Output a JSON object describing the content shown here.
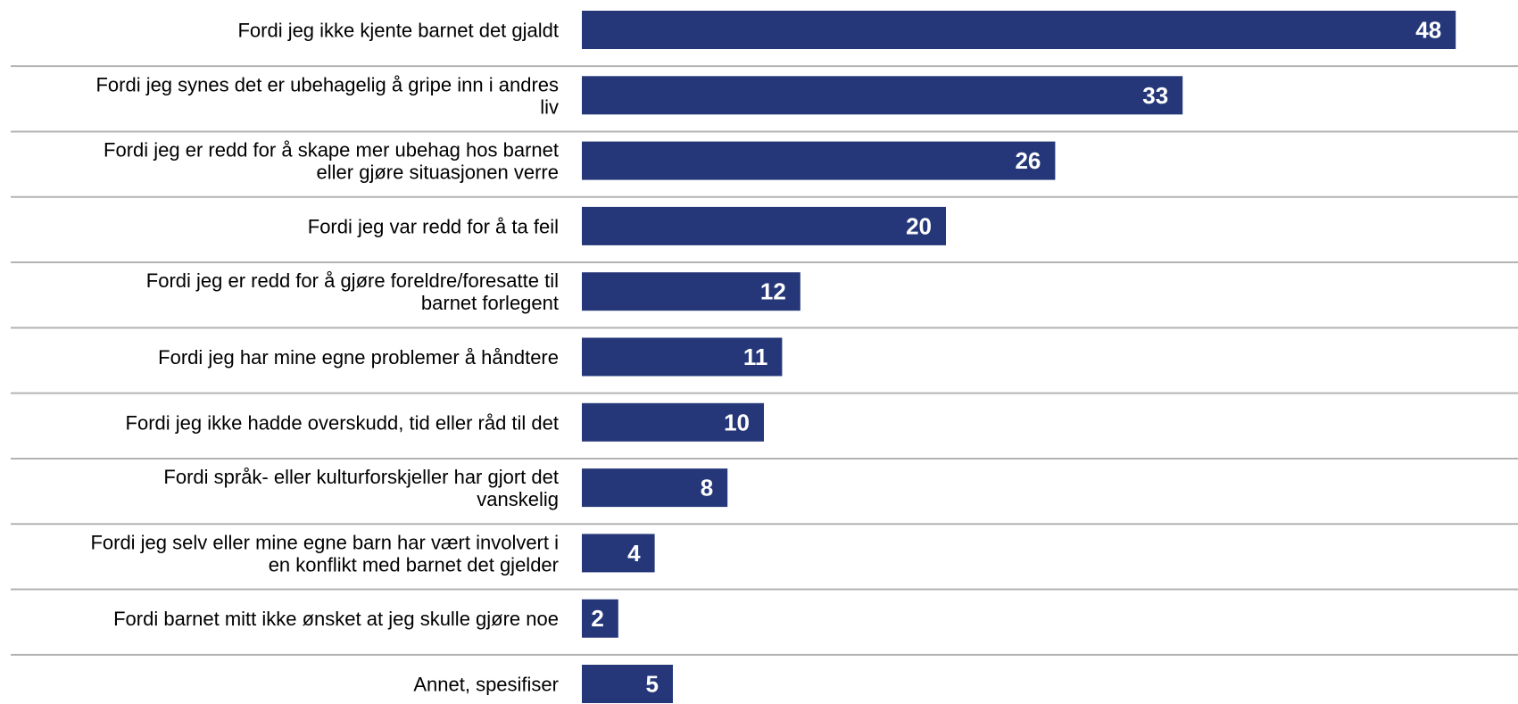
{
  "chart_data": {
    "type": "bar",
    "orientation": "horizontal",
    "categories": [
      "Fordi jeg ikke kjente barnet det gjaldt",
      "Fordi jeg synes det er ubehagelig å gripe inn i andres liv",
      "Fordi jeg er redd for å skape mer ubehag hos barnet eller gjøre situasjonen verre",
      "Fordi jeg var redd for å ta feil",
      "Fordi jeg er redd for å gjøre foreldre/foresatte til barnet forlegent",
      "Fordi jeg har mine egne problemer å håndtere",
      "Fordi jeg ikke hadde overskudd, tid eller råd til det",
      "Fordi språk- eller kulturforskjeller har gjort det vanskelig",
      "Fordi jeg selv eller mine egne barn har vært involvert i en konflikt med barnet det gjelder",
      "Fordi barnet mitt ikke ønsket at jeg skulle gjøre noe",
      "Annet, spesifiser"
    ],
    "category_lines": [
      [
        "Fordi jeg ikke kjente barnet det gjaldt"
      ],
      [
        "Fordi jeg synes det er ubehagelig å gripe inn i andres",
        "liv"
      ],
      [
        "Fordi jeg er redd for å skape mer ubehag hos barnet",
        "eller gjøre situasjonen verre"
      ],
      [
        "Fordi jeg var redd for å ta feil"
      ],
      [
        "Fordi jeg er redd for å gjøre foreldre/foresatte til",
        "barnet forlegent"
      ],
      [
        "Fordi jeg har mine egne problemer å håndtere"
      ],
      [
        "Fordi jeg ikke hadde overskudd, tid eller råd til det"
      ],
      [
        "Fordi språk- eller kulturforskjeller har gjort det",
        "vanskelig"
      ],
      [
        "Fordi jeg selv eller mine egne barn har vært involvert i",
        "en konflikt med barnet det gjelder"
      ],
      [
        "Fordi barnet mitt ikke ønsket at jeg skulle gjøre noe"
      ],
      [
        "Annet, spesifiser"
      ]
    ],
    "values": [
      48,
      33,
      26,
      20,
      12,
      11,
      10,
      8,
      4,
      2,
      5
    ],
    "title": "",
    "xlabel": "",
    "ylabel": "",
    "xlim": [
      0,
      50
    ],
    "grid": false,
    "legend": "none",
    "colors": {
      "bar": "#253778",
      "separator": "#b3b3b3",
      "label": "#000000",
      "value_label": "#ffffff"
    }
  }
}
